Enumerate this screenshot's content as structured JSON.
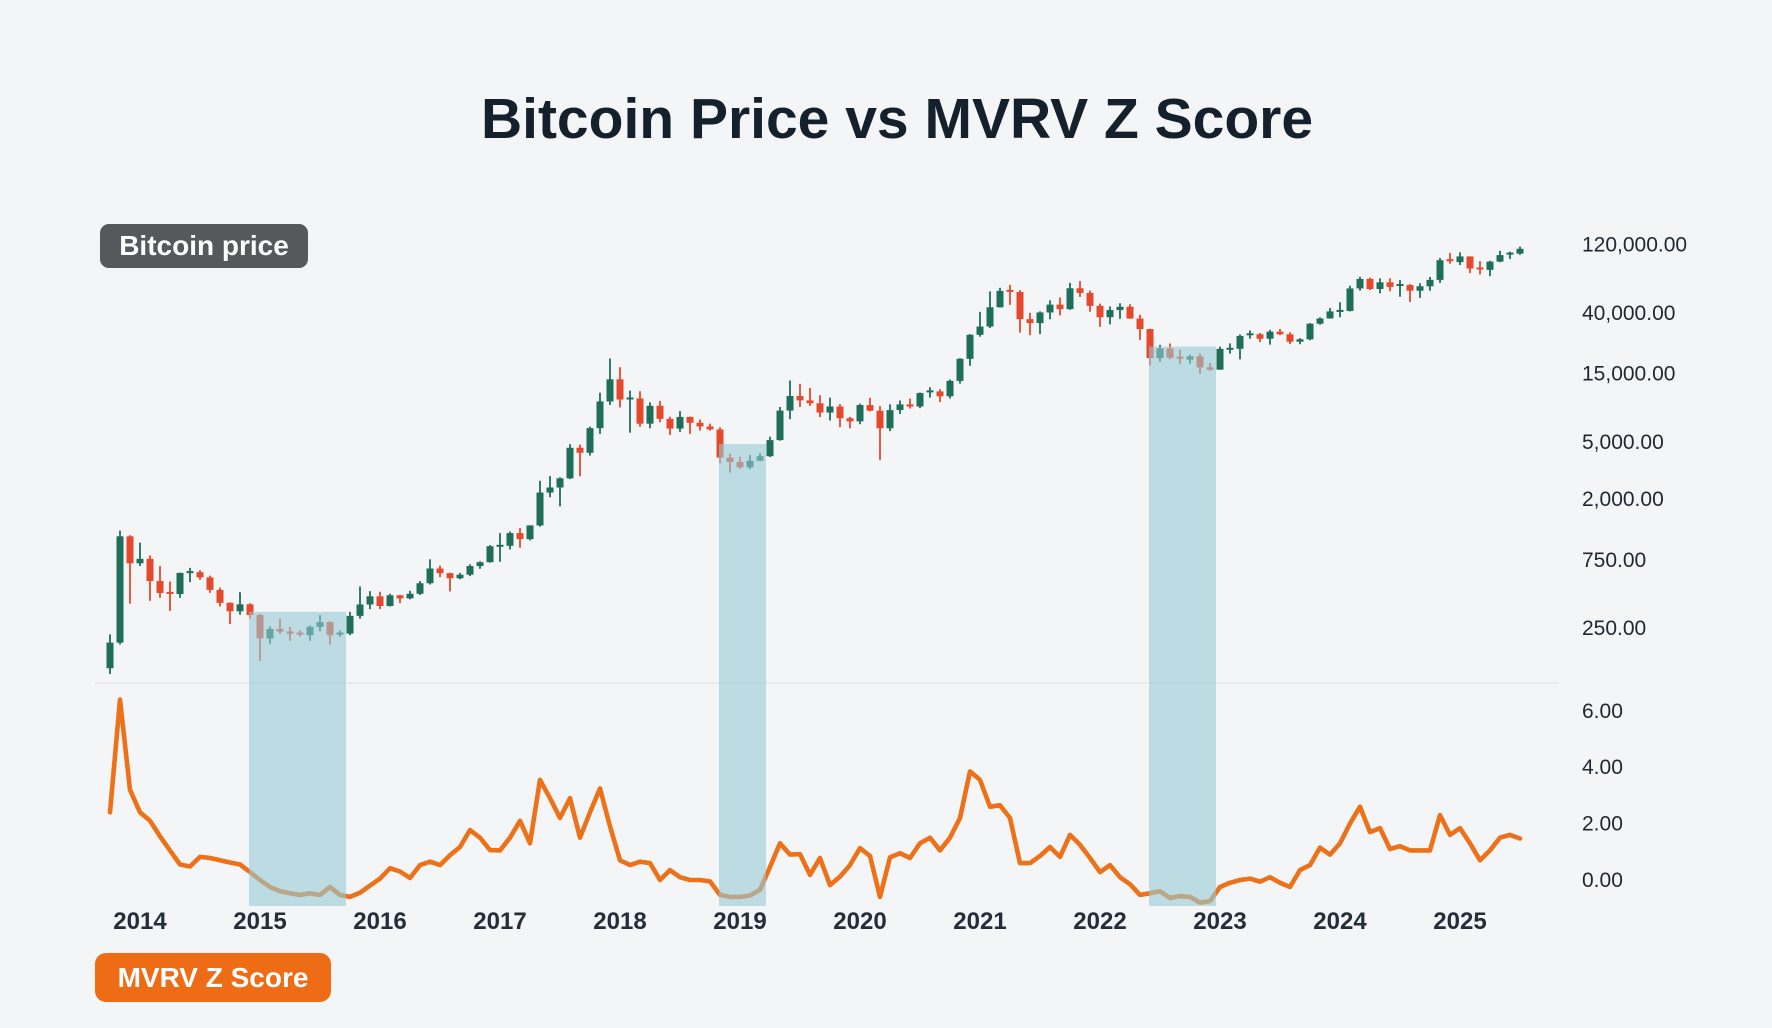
{
  "title": "Bitcoin Price vs MVRV Z Score",
  "badges": {
    "price_label": "Bitcoin price",
    "mvrv_label": "MVRV Z Score"
  },
  "colors": {
    "background": "#F3F5F7",
    "title_text": "#15202D",
    "candle_up": "#1E6E59",
    "candle_down": "#E5492D",
    "mvrv_line": "#ED7118",
    "highlight_band": "rgba(151,202,212,0.6)",
    "badge_price_bg": "#57585B",
    "badge_mvrv_bg": "#EE6C15",
    "axis_text": "#1F2733",
    "divider": "#E2E6EA"
  },
  "axes": {
    "price_ticks": [
      120000,
      40000,
      15000,
      5000,
      2000,
      750,
      250
    ],
    "price_tick_labels": [
      "120,000.00",
      "40,000.00",
      "15,000.00",
      "5,000.00",
      "2,000.00",
      "750.00",
      "250.00"
    ],
    "z_ticks": [
      6,
      4,
      2,
      0
    ],
    "z_tick_labels": [
      "6.00",
      "4.00",
      "2.00",
      "0.00"
    ],
    "years": [
      "2014",
      "2015",
      "2016",
      "2017",
      "2018",
      "2019",
      "2020",
      "2021",
      "2022",
      "2023",
      "2024",
      "2025"
    ],
    "price_scale": "log"
  },
  "chart_data": {
    "type": "candlestick+line",
    "x_unit": "month",
    "series": [
      {
        "name": "Bitcoin price",
        "type": "candlestick"
      },
      {
        "name": "MVRV Z Score",
        "type": "line"
      }
    ],
    "columns": [
      "date",
      "open",
      "high",
      "low",
      "close",
      "mvrv_z"
    ],
    "rows": [
      [
        "2013-10",
        135,
        233,
        123,
        204,
        2.4
      ],
      [
        "2013-11",
        204,
        1240,
        198,
        1130,
        6.4
      ],
      [
        "2013-12",
        1130,
        1150,
        382,
        732,
        3.2
      ],
      [
        "2014-01",
        732,
        1020,
        700,
        786,
        2.4
      ],
      [
        "2014-02",
        786,
        830,
        400,
        550,
        2.1
      ],
      [
        "2014-03",
        550,
        700,
        420,
        454,
        1.55
      ],
      [
        "2014-04",
        454,
        545,
        340,
        446,
        1.05
      ],
      [
        "2014-05",
        446,
        630,
        420,
        627,
        0.55
      ],
      [
        "2014-06",
        627,
        680,
        540,
        635,
        0.48
      ],
      [
        "2014-07",
        635,
        655,
        560,
        583,
        0.82
      ],
      [
        "2014-08",
        583,
        600,
        455,
        477,
        0.78
      ],
      [
        "2014-09",
        477,
        495,
        365,
        387,
        0.7
      ],
      [
        "2014-10",
        387,
        390,
        275,
        338,
        0.62
      ],
      [
        "2014-11",
        338,
        460,
        320,
        378,
        0.55
      ],
      [
        "2014-12",
        378,
        385,
        300,
        318,
        0.28
      ],
      [
        "2015-01",
        318,
        325,
        152,
        218,
        0.0
      ],
      [
        "2015-02",
        218,
        265,
        200,
        254,
        -0.25
      ],
      [
        "2015-03",
        254,
        300,
        235,
        244,
        -0.4
      ],
      [
        "2015-04",
        244,
        262,
        210,
        236,
        -0.47
      ],
      [
        "2015-05",
        236,
        248,
        225,
        230,
        -0.53
      ],
      [
        "2015-06",
        230,
        268,
        210,
        263,
        -0.47
      ],
      [
        "2015-07",
        263,
        318,
        245,
        284,
        -0.53
      ],
      [
        "2015-08",
        284,
        288,
        198,
        230,
        -0.25
      ],
      [
        "2015-09",
        230,
        248,
        225,
        236,
        -0.53
      ],
      [
        "2015-10",
        236,
        335,
        230,
        314,
        -0.6
      ],
      [
        "2015-11",
        314,
        504,
        300,
        377,
        -0.45
      ],
      [
        "2015-12",
        377,
        467,
        350,
        430,
        -0.2
      ],
      [
        "2016-01",
        430,
        463,
        350,
        368,
        0.05
      ],
      [
        "2016-02",
        368,
        448,
        365,
        437,
        0.42
      ],
      [
        "2016-03",
        437,
        440,
        385,
        416,
        0.3
      ],
      [
        "2016-04",
        416,
        470,
        410,
        448,
        0.07
      ],
      [
        "2016-05",
        448,
        550,
        440,
        531,
        0.53
      ],
      [
        "2016-06",
        531,
        780,
        520,
        673,
        0.65
      ],
      [
        "2016-07",
        673,
        705,
        585,
        624,
        0.53
      ],
      [
        "2016-08",
        624,
        630,
        465,
        575,
        0.88
      ],
      [
        "2016-09",
        575,
        628,
        565,
        609,
        1.17
      ],
      [
        "2016-10",
        609,
        720,
        595,
        700,
        1.77
      ],
      [
        "2016-11",
        700,
        755,
        670,
        745,
        1.5
      ],
      [
        "2016-12",
        745,
        980,
        740,
        963,
        1.06
      ],
      [
        "2017-01",
        963,
        1190,
        750,
        970,
        1.05
      ],
      [
        "2017-02",
        970,
        1220,
        915,
        1190,
        1.5
      ],
      [
        "2017-03",
        1190,
        1290,
        940,
        1080,
        2.1
      ],
      [
        "2017-04",
        1080,
        1350,
        1060,
        1347,
        1.3
      ],
      [
        "2017-05",
        1347,
        2760,
        1320,
        2286,
        3.55
      ],
      [
        "2017-06",
        2286,
        2980,
        2120,
        2480,
        2.9
      ],
      [
        "2017-07",
        2480,
        2920,
        1830,
        2875,
        2.2
      ],
      [
        "2017-08",
        2875,
        4980,
        2840,
        4703,
        2.9
      ],
      [
        "2017-09",
        4703,
        4950,
        2970,
        4338,
        1.5
      ],
      [
        "2017-10",
        4338,
        6600,
        4150,
        6450,
        2.4
      ],
      [
        "2017-11",
        6450,
        11400,
        5880,
        9918,
        3.25
      ],
      [
        "2017-12",
        9918,
        19800,
        9380,
        14156,
        1.9
      ],
      [
        "2018-01",
        14156,
        17200,
        9000,
        10221,
        0.7
      ],
      [
        "2018-02",
        10221,
        11790,
        6000,
        10397,
        0.53
      ],
      [
        "2018-03",
        10397,
        11700,
        6600,
        6928,
        0.65
      ],
      [
        "2018-04",
        6928,
        9760,
        6430,
        9240,
        0.6
      ],
      [
        "2018-05",
        9240,
        9990,
        7080,
        7494,
        0.0
      ],
      [
        "2018-06",
        7494,
        7750,
        5780,
        6404,
        0.35
      ],
      [
        "2018-07",
        6404,
        8480,
        6070,
        7729,
        0.1
      ],
      [
        "2018-08",
        7729,
        7760,
        5880,
        7033,
        0.0
      ],
      [
        "2018-09",
        7033,
        7410,
        6200,
        6625,
        0.0
      ],
      [
        "2018-10",
        6625,
        6940,
        6200,
        6317,
        -0.05
      ],
      [
        "2018-11",
        6317,
        6540,
        3650,
        4017,
        -0.53
      ],
      [
        "2018-12",
        4017,
        4270,
        3150,
        3742,
        -0.6
      ],
      [
        "2019-01",
        3742,
        4070,
        3350,
        3434,
        -0.6
      ],
      [
        "2019-02",
        3434,
        4190,
        3330,
        3816,
        -0.55
      ],
      [
        "2019-03",
        3816,
        4290,
        3790,
        4105,
        -0.35
      ],
      [
        "2019-04",
        4105,
        5620,
        4050,
        5320,
        0.46
      ],
      [
        "2019-05",
        5320,
        9070,
        5270,
        8558,
        1.3
      ],
      [
        "2019-06",
        8558,
        13900,
        7450,
        10817,
        0.9
      ],
      [
        "2019-07",
        10817,
        13150,
        9080,
        10085,
        0.92
      ],
      [
        "2019-08",
        10085,
        12320,
        9230,
        9630,
        0.18
      ],
      [
        "2019-09",
        9630,
        10950,
        7700,
        8293,
        0.78
      ],
      [
        "2019-10",
        8293,
        10540,
        7290,
        9140,
        -0.18
      ],
      [
        "2019-11",
        9140,
        9500,
        6540,
        7569,
        0.12
      ],
      [
        "2019-12",
        7569,
        7740,
        6430,
        7193,
        0.53
      ],
      [
        "2020-01",
        7193,
        9570,
        6870,
        9350,
        1.13
      ],
      [
        "2020-02",
        9350,
        10500,
        8440,
        8543,
        0.85
      ],
      [
        "2020-03",
        8543,
        9190,
        3850,
        6438,
        -0.6
      ],
      [
        "2020-04",
        6438,
        9470,
        6150,
        8629,
        0.8
      ],
      [
        "2020-05",
        8629,
        10070,
        8100,
        9454,
        0.95
      ],
      [
        "2020-06",
        9454,
        10380,
        8850,
        9137,
        0.78
      ],
      [
        "2020-07",
        9137,
        11450,
        8900,
        11351,
        1.3
      ],
      [
        "2020-08",
        11351,
        12470,
        10550,
        11655,
        1.5
      ],
      [
        "2020-09",
        11655,
        12050,
        9820,
        10776,
        1.05
      ],
      [
        "2020-10",
        10776,
        14100,
        10400,
        13797,
        1.5
      ],
      [
        "2020-11",
        13797,
        19900,
        13200,
        19698,
        2.2
      ],
      [
        "2020-12",
        19698,
        29320,
        17600,
        28996,
        3.85
      ],
      [
        "2021-01",
        28996,
        41950,
        28150,
        33108,
        3.55
      ],
      [
        "2021-02",
        33108,
        58300,
        32300,
        45164,
        2.6
      ],
      [
        "2021-03",
        45164,
        61800,
        44950,
        58789,
        2.65
      ],
      [
        "2021-04",
        58789,
        64800,
        46950,
        57720,
        2.2
      ],
      [
        "2021-05",
        57720,
        59500,
        30000,
        37298,
        0.6
      ],
      [
        "2021-06",
        37298,
        41300,
        28800,
        35026,
        0.6
      ],
      [
        "2021-07",
        35026,
        42300,
        29300,
        41553,
        0.85
      ],
      [
        "2021-08",
        41553,
        50500,
        37300,
        47110,
        1.17
      ],
      [
        "2021-09",
        47110,
        52900,
        39600,
        43824,
        0.82
      ],
      [
        "2021-10",
        43824,
        66900,
        43300,
        61320,
        1.6
      ],
      [
        "2021-11",
        61320,
        68990,
        53300,
        56907,
        1.25
      ],
      [
        "2021-12",
        56907,
        59100,
        42000,
        46219,
        0.78
      ],
      [
        "2022-01",
        46219,
        47950,
        32950,
        38491,
        0.28
      ],
      [
        "2022-02",
        38491,
        45800,
        34300,
        43194,
        0.53
      ],
      [
        "2022-03",
        43194,
        48200,
        37550,
        45528,
        0.1
      ],
      [
        "2022-04",
        45528,
        47450,
        37600,
        37644,
        -0.15
      ],
      [
        "2022-05",
        37644,
        40000,
        26700,
        31784,
        -0.53
      ],
      [
        "2022-06",
        31784,
        31980,
        17600,
        19926,
        -0.47
      ],
      [
        "2022-07",
        19926,
        24650,
        18800,
        23293,
        -0.4
      ],
      [
        "2022-08",
        23293,
        25200,
        19520,
        20048,
        -0.64
      ],
      [
        "2022-09",
        20048,
        22800,
        18100,
        19424,
        -0.57
      ],
      [
        "2022-10",
        19424,
        21080,
        18200,
        20490,
        -0.6
      ],
      [
        "2022-11",
        20490,
        21480,
        15480,
        17167,
        -0.8
      ],
      [
        "2022-12",
        17167,
        18390,
        16250,
        16542,
        -0.75
      ],
      [
        "2023-01",
        16542,
        23960,
        16490,
        23125,
        -0.25
      ],
      [
        "2023-02",
        23125,
        25250,
        21400,
        23142,
        -0.1
      ],
      [
        "2023-03",
        23142,
        29180,
        19550,
        28468,
        0.0
      ],
      [
        "2023-04",
        28468,
        31050,
        27250,
        29233,
        0.05
      ],
      [
        "2023-05",
        29233,
        29870,
        25800,
        27210,
        -0.06
      ],
      [
        "2023-06",
        27210,
        31400,
        24750,
        30472,
        0.1
      ],
      [
        "2023-07",
        30472,
        31850,
        28850,
        29232,
        -0.1
      ],
      [
        "2023-08",
        29232,
        30230,
        24950,
        25932,
        -0.25
      ],
      [
        "2023-09",
        25932,
        27480,
        24900,
        26962,
        0.35
      ],
      [
        "2023-10",
        26962,
        35000,
        26550,
        34656,
        0.53
      ],
      [
        "2023-11",
        34656,
        38400,
        34100,
        37718,
        1.15
      ],
      [
        "2023-12",
        37718,
        44700,
        37600,
        42265,
        0.9
      ],
      [
        "2024-01",
        42265,
        48970,
        38500,
        42569,
        1.3
      ],
      [
        "2024-02",
        42569,
        63900,
        42250,
        61168,
        2.0
      ],
      [
        "2024-03",
        61168,
        73800,
        59000,
        71280,
        2.6
      ],
      [
        "2024-04",
        71280,
        72750,
        59600,
        60622,
        1.7
      ],
      [
        "2024-05",
        60622,
        71950,
        56550,
        67491,
        1.84
      ],
      [
        "2024-06",
        67491,
        72000,
        58400,
        62673,
        1.1
      ],
      [
        "2024-07",
        62673,
        70000,
        53500,
        64619,
        1.2
      ],
      [
        "2024-08",
        64619,
        65600,
        49100,
        58969,
        1.05
      ],
      [
        "2024-09",
        58969,
        66500,
        52550,
        63329,
        1.05
      ],
      [
        "2024-10",
        63329,
        73600,
        58900,
        70215,
        1.05
      ],
      [
        "2024-11",
        70215,
        99800,
        66850,
        96405,
        2.3
      ],
      [
        "2024-12",
        96405,
        108300,
        91200,
        93429,
        1.6
      ],
      [
        "2025-01",
        93429,
        109350,
        89150,
        102405,
        1.84
      ],
      [
        "2025-02",
        102405,
        102500,
        78250,
        84349,
        1.3
      ],
      [
        "2025-03",
        84349,
        95000,
        76600,
        82548,
        0.7
      ],
      [
        "2025-04",
        82548,
        95500,
        74500,
        94207,
        1.05
      ],
      [
        "2025-05",
        94207,
        112000,
        93350,
        104598,
        1.5
      ],
      [
        "2025-06",
        104598,
        110530,
        98300,
        107135,
        1.6
      ],
      [
        "2025-07",
        107135,
        120000,
        105150,
        115800,
        1.47
      ]
    ],
    "highlight_bands": [
      {
        "from": "2014-12",
        "to": "2015-09",
        "top_price": 335
      },
      {
        "from": "2018-11",
        "to": "2019-03",
        "top_price": 5000
      },
      {
        "from": "2022-06",
        "to": "2022-12",
        "top_price": 24000
      }
    ]
  }
}
